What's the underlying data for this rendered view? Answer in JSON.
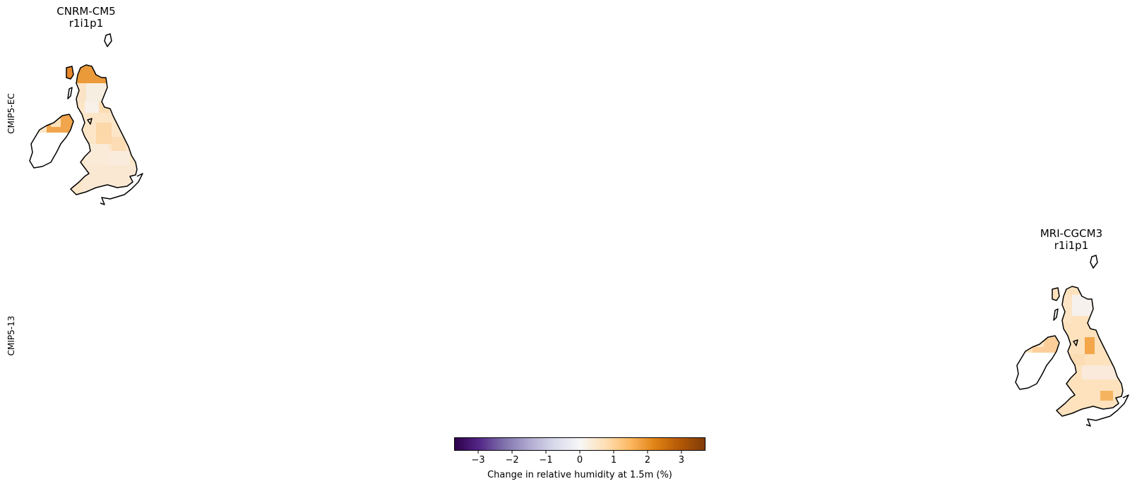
{
  "row_labels": [
    "CMIP5-EC",
    "CMIP5-13"
  ],
  "panels": [
    {
      "model": "CNRM-CM5",
      "run": "r1i1p1",
      "row": 0
    },
    {
      "model": "MRI-CGCM3",
      "run": "r1i1p1",
      "row": 1
    }
  ],
  "colorbar": {
    "label": "Change in relative humidity at 1.5m (%)",
    "cmap": "PuOr_r",
    "range": [
      -3.7,
      3.7
    ],
    "ticks": [
      -3,
      -2,
      -1,
      0,
      1,
      2,
      3
    ],
    "tick_labels": [
      "−3",
      "−2",
      "−1",
      "0",
      "1",
      "2",
      "3"
    ],
    "colors": [
      "#2d004b",
      "#542788",
      "#8073ac",
      "#b2abd2",
      "#d8daeb",
      "#f7f7f7",
      "#fee0b6",
      "#fdb863",
      "#e08214",
      "#b35806",
      "#7f3b08"
    ]
  }
}
